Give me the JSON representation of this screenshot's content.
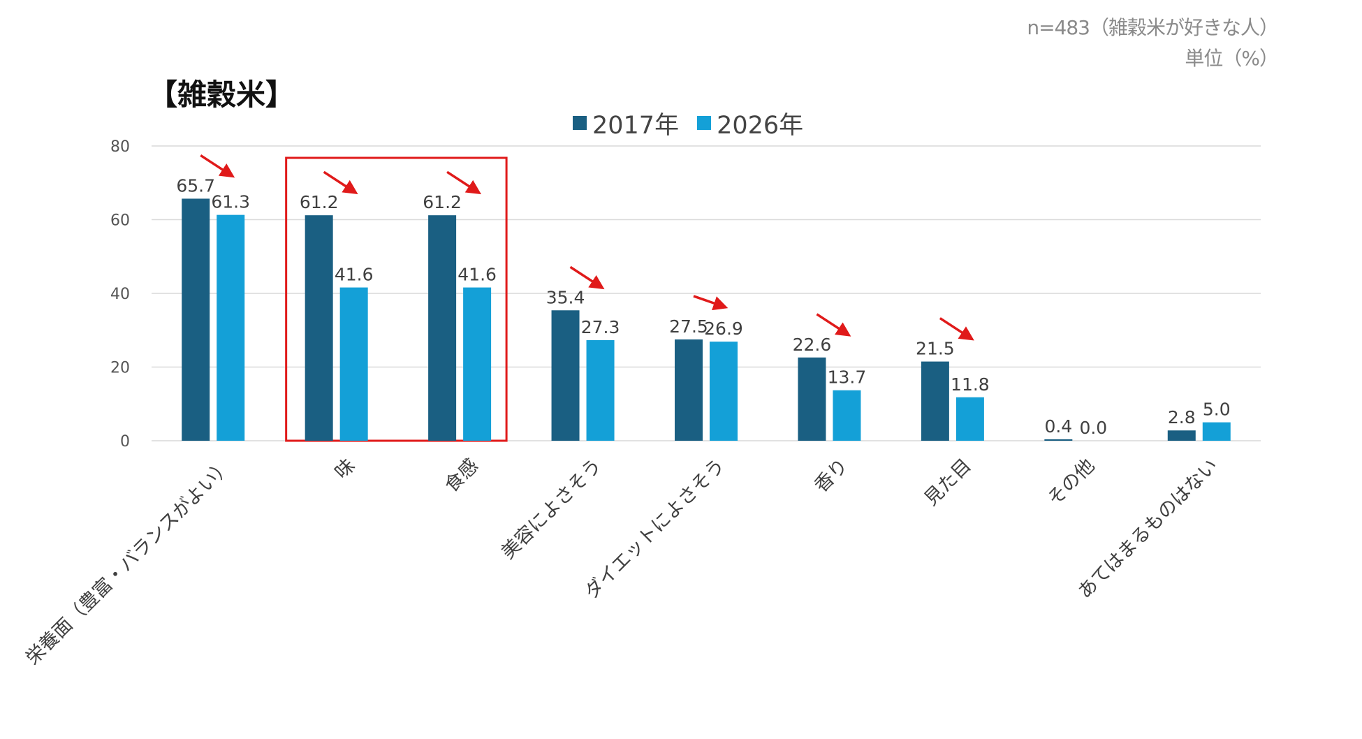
{
  "header": {
    "sample_note": "n=483（雑穀米が好きな人）",
    "unit_note": "単位（%）",
    "title": "【雑穀米】"
  },
  "colors": {
    "series_2017": "#1a5f82",
    "series_2026": "#14a0d7",
    "highlight_box": "#e01a1a",
    "arrow": "#e01a1a",
    "grid": "#d9d9d9",
    "text": "#404040"
  },
  "chart_data": {
    "type": "bar",
    "title": "",
    "xlabel": "",
    "ylabel": "",
    "ylim": [
      0,
      80
    ],
    "yticks": [
      0,
      20,
      40,
      60,
      80
    ],
    "grid": true,
    "legend_position": "top-center",
    "categories": [
      "栄養面（豊富・バランスがよい）",
      "味",
      "食感",
      "美容によさそう",
      "ダイエットによさそう",
      "香り",
      "見た目",
      "その他",
      "あてはまるものはない"
    ],
    "series": [
      {
        "name": "2017年",
        "values": [
          65.7,
          61.2,
          61.2,
          35.4,
          27.5,
          22.6,
          21.5,
          0.4,
          2.8
        ],
        "labels": [
          "65.7",
          "61.2",
          "61.2",
          "35.4",
          "27.5",
          "22.6",
          "21.5",
          "0.4",
          "2.8"
        ]
      },
      {
        "name": "2026年",
        "values": [
          61.3,
          41.6,
          41.6,
          27.3,
          26.9,
          13.7,
          11.8,
          0.0,
          5.0
        ],
        "labels": [
          "61.3",
          "41.6",
          "41.6",
          "27.3",
          "26.9",
          "13.7",
          "11.8",
          "0.0",
          "5.0"
        ]
      }
    ],
    "highlighted_categories": [
      "味",
      "食感"
    ],
    "decrease_arrows": [
      "栄養面（豊富・バランスがよい）",
      "味",
      "食感",
      "美容によさそう",
      "ダイエットによさそう",
      "香り",
      "見た目"
    ]
  }
}
